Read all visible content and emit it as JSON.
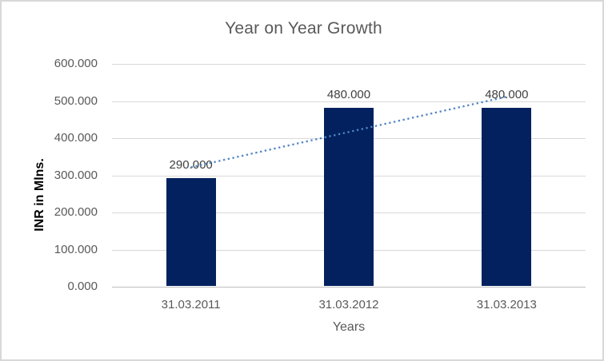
{
  "chart_data": {
    "type": "bar",
    "title": "Year on Year Growth",
    "xlabel": "Years",
    "ylabel": "INR in Mlns.",
    "categories": [
      "31.03.2011",
      "31.03.2012",
      "31.03.2013"
    ],
    "values": [
      290,
      480,
      480
    ],
    "data_labels": [
      "290.000",
      "480.000",
      "480.000"
    ],
    "y_ticks": [
      "0.000",
      "100.000",
      "200.000",
      "300.000",
      "400.000",
      "500.000",
      "600.000"
    ],
    "ylim": [
      0,
      600
    ],
    "grid": true,
    "legend": false,
    "trendline": {
      "type": "linear",
      "style": "dotted",
      "endpoint_values": [
        321.667,
        511.667
      ]
    },
    "colors": {
      "bar": "#02215E",
      "trendline": "#5185C5",
      "gridline": "#D9D9D9",
      "axis_line": "#BFBFBF",
      "title_text": "#595959",
      "tick_text": "#595959",
      "data_label_text": "#404040",
      "axis_title_text": "#000000",
      "border": "#D8D8D8"
    }
  }
}
